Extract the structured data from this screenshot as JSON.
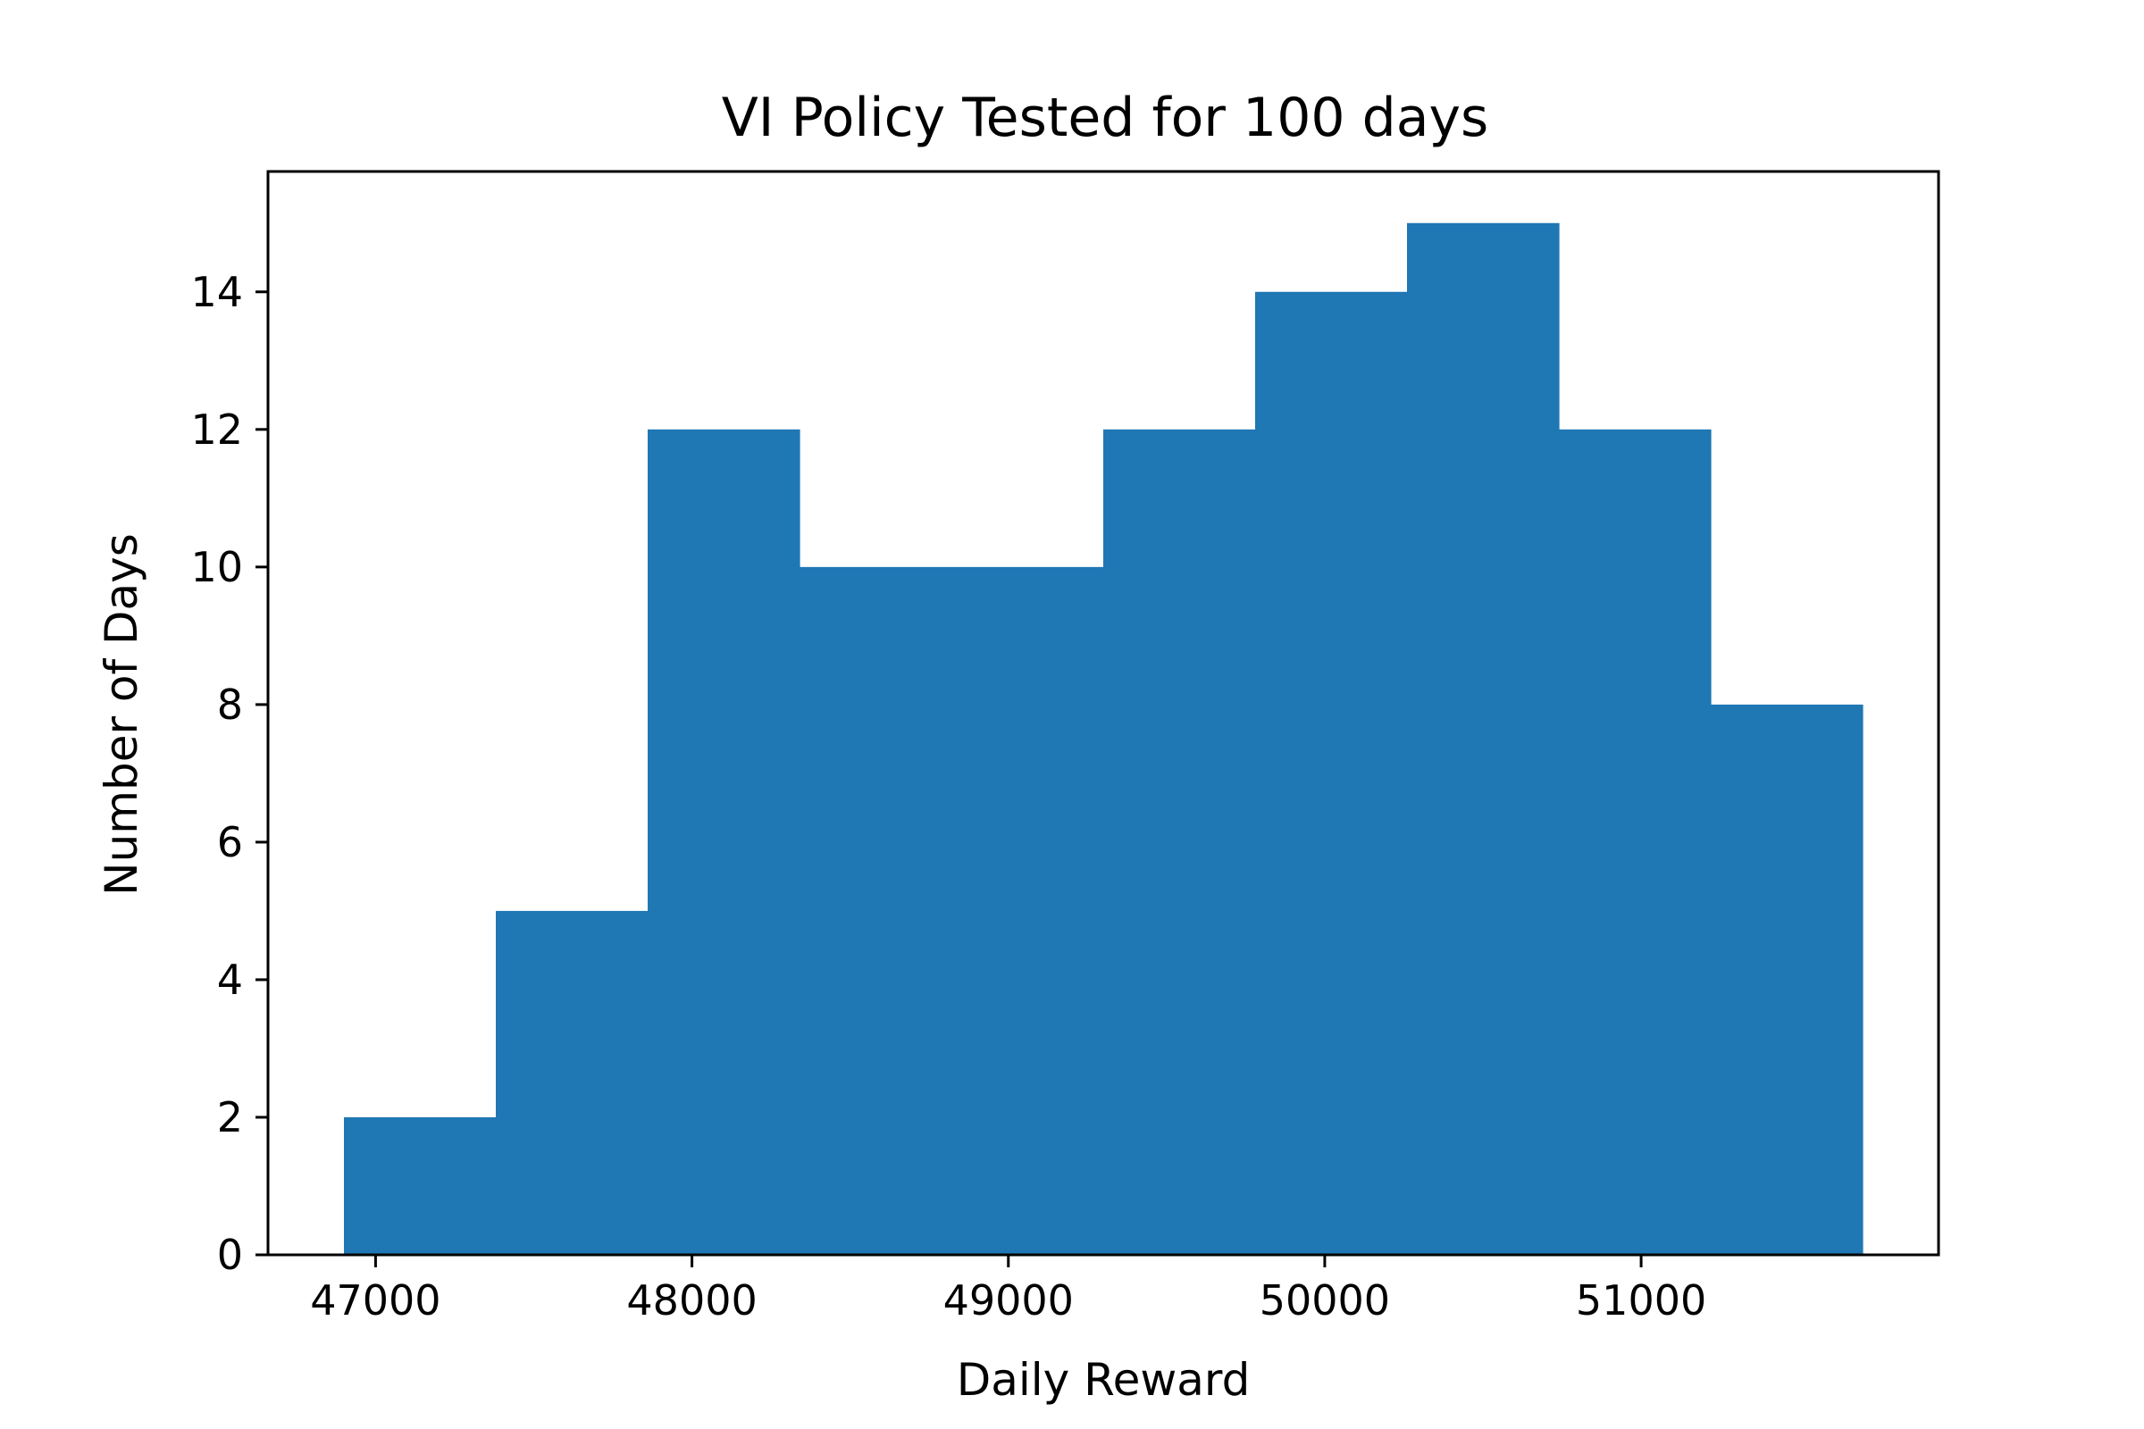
{
  "chart_data": {
    "type": "bar",
    "title": "VI Policy Tested for 100 days",
    "xlabel": "Daily Reward",
    "ylabel": "Number of Days",
    "bin_edges": [
      46900,
      47380,
      47860,
      48340,
      48820,
      49300,
      49780,
      50260,
      50740,
      51220,
      51700
    ],
    "values": [
      2,
      5,
      12,
      10,
      10,
      12,
      14,
      15,
      12,
      8
    ],
    "xlim": [
      46660,
      51940
    ],
    "ylim": [
      0,
      15.75
    ],
    "xticks": [
      47000,
      48000,
      49000,
      50000,
      51000
    ],
    "xtick_labels": [
      "47000",
      "48000",
      "49000",
      "50000",
      "51000"
    ],
    "yticks": [
      0,
      2,
      4,
      6,
      8,
      10,
      12,
      14
    ],
    "ytick_labels": [
      "0",
      "2",
      "4",
      "6",
      "8",
      "10",
      "12",
      "14"
    ],
    "bar_color": "#1f77b4",
    "grid": false,
    "legend": "none"
  }
}
